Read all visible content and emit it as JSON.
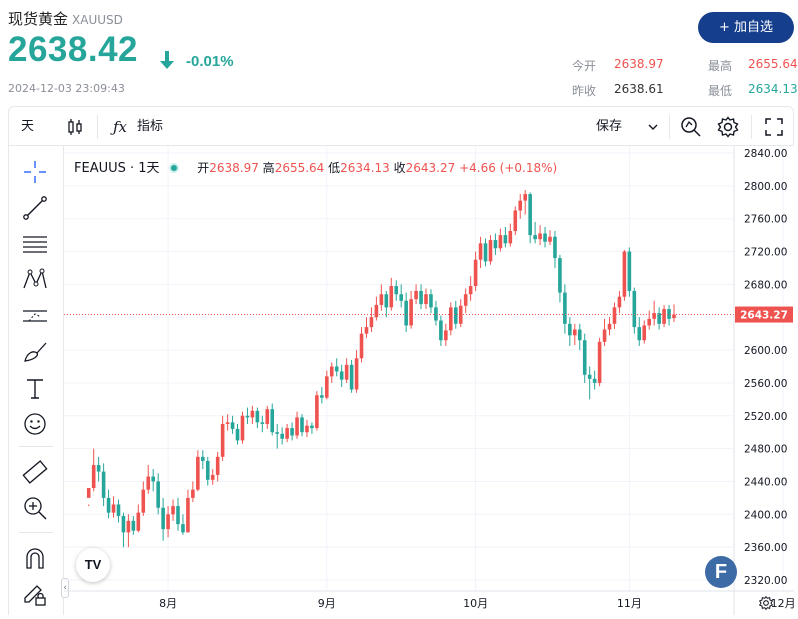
{
  "header": {
    "title": "现货黄金",
    "symbol": "XAUUSD",
    "price": "2638.42",
    "change": "-0.01%",
    "timestamp": "2024-12-03 23:09:43",
    "add_button": "+ 加自选",
    "stats": {
      "open_label": "今开",
      "open": "2638.97",
      "high_label": "最高",
      "high": "2655.64",
      "prev_label": "昨收",
      "prev": "2638.61",
      "low_label": "最低",
      "low": "2634.13"
    }
  },
  "toolbar": {
    "interval": "天",
    "indicators": "指标",
    "save": "保存"
  },
  "legend": {
    "name": "FEAUUS · 1天",
    "open_label": "开",
    "open": "2638.97",
    "high_label": "高",
    "high": "2655.64",
    "low_label": "低",
    "low": "2634.13",
    "close_label": "收",
    "close": "2643.27",
    "change": "+4.66 (+0.18%)"
  },
  "colors": {
    "up": "#ef5350",
    "down": "#26a69a",
    "accent": "#153e8c"
  },
  "icons": [
    "crosshair-icon",
    "trend-line-icon",
    "fib-icon",
    "pattern-icon",
    "forecast-icon",
    "brush-icon",
    "text-icon",
    "emoji-icon",
    "ruler-icon",
    "zoom-icon",
    "magnet-icon",
    "lock-pencil-icon"
  ],
  "chart_data": {
    "type": "candlestick",
    "ylim": [
      2310,
      2850
    ],
    "yticks": [
      2840,
      2800,
      2760,
      2720,
      2680,
      2640,
      2600,
      2560,
      2520,
      2480,
      2440,
      2400,
      2360,
      2320
    ],
    "ytick_labels": [
      "2840.00",
      "2800.00",
      "2760.00",
      "2720.00",
      "2680.00",
      "2640.00",
      "2600.00",
      "2560.00",
      "2520.00",
      "2480.00",
      "2440.00",
      "2400.00",
      "2360.00",
      "2320.00"
    ],
    "last_price_label": "2643.27",
    "last_price": 2643.27,
    "month_labels": [
      "8月",
      "9月",
      "10月",
      "11月",
      "12月"
    ],
    "month_start_index": [
      16,
      48,
      78,
      109,
      140
    ],
    "candles": [
      [
        2420,
        2432,
        2412,
        2410
      ],
      [
        2432,
        2460,
        2480,
        2428
      ],
      [
        2460,
        2452,
        2470,
        2440
      ],
      [
        2452,
        2420,
        2462,
        2410
      ],
      [
        2420,
        2402,
        2430,
        2395
      ],
      [
        2402,
        2412,
        2422,
        2396
      ],
      [
        2412,
        2398,
        2418,
        2390
      ],
      [
        2398,
        2378,
        2402,
        2360
      ],
      [
        2378,
        2392,
        2400,
        2360
      ],
      [
        2392,
        2380,
        2398,
        2375
      ],
      [
        2380,
        2402,
        2412,
        2378
      ],
      [
        2402,
        2430,
        2440,
        2398
      ],
      [
        2430,
        2446,
        2460,
        2425
      ],
      [
        2446,
        2440,
        2455,
        2428
      ],
      [
        2440,
        2408,
        2450,
        2400
      ],
      [
        2408,
        2382,
        2420,
        2368
      ],
      [
        2382,
        2400,
        2410,
        2372
      ],
      [
        2400,
        2410,
        2418,
        2392
      ],
      [
        2410,
        2388,
        2420,
        2380
      ],
      [
        2388,
        2378,
        2400,
        2375
      ],
      [
        2378,
        2420,
        2430,
        2378
      ],
      [
        2420,
        2430,
        2440,
        2415
      ],
      [
        2430,
        2470,
        2478,
        2428
      ],
      [
        2470,
        2465,
        2478,
        2455
      ],
      [
        2465,
        2442,
        2470,
        2435
      ],
      [
        2442,
        2448,
        2455,
        2436
      ],
      [
        2448,
        2470,
        2476,
        2440
      ],
      [
        2470,
        2510,
        2520,
        2465
      ],
      [
        2510,
        2512,
        2522,
        2502
      ],
      [
        2512,
        2504,
        2520,
        2498
      ],
      [
        2504,
        2490,
        2510,
        2485
      ],
      [
        2490,
        2520,
        2525,
        2486
      ],
      [
        2520,
        2518,
        2530,
        2510
      ],
      [
        2518,
        2526,
        2532,
        2510
      ],
      [
        2526,
        2512,
        2530,
        2505
      ],
      [
        2512,
        2510,
        2520,
        2500
      ],
      [
        2510,
        2528,
        2532,
        2504
      ],
      [
        2528,
        2500,
        2535,
        2496
      ],
      [
        2500,
        2498,
        2510,
        2480
      ],
      [
        2498,
        2492,
        2506,
        2485
      ],
      [
        2492,
        2505,
        2510,
        2488
      ],
      [
        2505,
        2496,
        2512,
        2490
      ],
      [
        2496,
        2518,
        2525,
        2492
      ],
      [
        2518,
        2500,
        2522,
        2495
      ],
      [
        2500,
        2508,
        2515,
        2494
      ],
      [
        2508,
        2505,
        2512,
        2498
      ],
      [
        2505,
        2545,
        2550,
        2502
      ],
      [
        2545,
        2542,
        2555,
        2535
      ],
      [
        2542,
        2568,
        2575,
        2540
      ],
      [
        2568,
        2580,
        2585,
        2560
      ],
      [
        2580,
        2574,
        2590,
        2568
      ],
      [
        2574,
        2564,
        2582,
        2555
      ],
      [
        2564,
        2582,
        2590,
        2560
      ],
      [
        2582,
        2552,
        2588,
        2548
      ],
      [
        2552,
        2590,
        2600,
        2548
      ],
      [
        2590,
        2620,
        2628,
        2585
      ],
      [
        2620,
        2628,
        2640,
        2615
      ],
      [
        2628,
        2640,
        2652,
        2622
      ],
      [
        2640,
        2655,
        2665,
        2636
      ],
      [
        2655,
        2668,
        2680,
        2648
      ],
      [
        2668,
        2652,
        2672,
        2640
      ],
      [
        2652,
        2678,
        2688,
        2648
      ],
      [
        2678,
        2668,
        2685,
        2660
      ],
      [
        2668,
        2660,
        2680,
        2652
      ],
      [
        2660,
        2630,
        2670,
        2622
      ],
      [
        2630,
        2662,
        2672,
        2626
      ],
      [
        2662,
        2672,
        2680,
        2656
      ],
      [
        2672,
        2656,
        2680,
        2650
      ],
      [
        2656,
        2668,
        2675,
        2650
      ],
      [
        2668,
        2652,
        2674,
        2645
      ],
      [
        2652,
        2636,
        2660,
        2630
      ],
      [
        2636,
        2612,
        2642,
        2605
      ],
      [
        2612,
        2624,
        2632,
        2605
      ],
      [
        2624,
        2652,
        2658,
        2618
      ],
      [
        2652,
        2632,
        2660,
        2626
      ],
      [
        2632,
        2654,
        2662,
        2628
      ],
      [
        2654,
        2668,
        2675,
        2645
      ],
      [
        2668,
        2678,
        2690,
        2660
      ],
      [
        2678,
        2710,
        2720,
        2672
      ],
      [
        2710,
        2730,
        2738,
        2700
      ],
      [
        2730,
        2708,
        2736,
        2702
      ],
      [
        2708,
        2734,
        2740,
        2704
      ],
      [
        2734,
        2724,
        2742,
        2716
      ],
      [
        2724,
        2740,
        2748,
        2720
      ],
      [
        2740,
        2730,
        2750,
        2725
      ],
      [
        2730,
        2745,
        2754,
        2726
      ],
      [
        2745,
        2770,
        2775,
        2740
      ],
      [
        2770,
        2782,
        2790,
        2760
      ],
      [
        2782,
        2790,
        2795,
        2765
      ],
      [
        2790,
        2740,
        2792,
        2730
      ],
      [
        2740,
        2735,
        2756,
        2730
      ],
      [
        2735,
        2742,
        2752,
        2728
      ],
      [
        2742,
        2732,
        2750,
        2725
      ],
      [
        2732,
        2738,
        2746,
        2728
      ],
      [
        2738,
        2712,
        2745,
        2700
      ],
      [
        2712,
        2670,
        2716,
        2658
      ],
      [
        2670,
        2632,
        2680,
        2620
      ],
      [
        2632,
        2618,
        2640,
        2605
      ],
      [
        2618,
        2625,
        2632,
        2606
      ],
      [
        2625,
        2612,
        2632,
        2600
      ],
      [
        2612,
        2570,
        2620,
        2560
      ],
      [
        2570,
        2565,
        2580,
        2540
      ],
      [
        2565,
        2560,
        2575,
        2552
      ],
      [
        2560,
        2610,
        2615,
        2556
      ],
      [
        2610,
        2625,
        2638,
        2605
      ],
      [
        2625,
        2632,
        2640,
        2618
      ],
      [
        2632,
        2652,
        2658,
        2626
      ],
      [
        2652,
        2665,
        2672,
        2645
      ],
      [
        2665,
        2720,
        2722,
        2660
      ],
      [
        2720,
        2672,
        2725,
        2665
      ],
      [
        2672,
        2628,
        2676,
        2620
      ],
      [
        2628,
        2612,
        2640,
        2605
      ],
      [
        2612,
        2630,
        2636,
        2608
      ],
      [
        2630,
        2638,
        2648,
        2625
      ],
      [
        2638,
        2645,
        2660,
        2630
      ],
      [
        2645,
        2632,
        2652,
        2625
      ],
      [
        2632,
        2650,
        2655,
        2628
      ],
      [
        2650,
        2638,
        2655,
        2630
      ],
      [
        2638.97,
        2643.27,
        2655.64,
        2634.13
      ]
    ]
  }
}
